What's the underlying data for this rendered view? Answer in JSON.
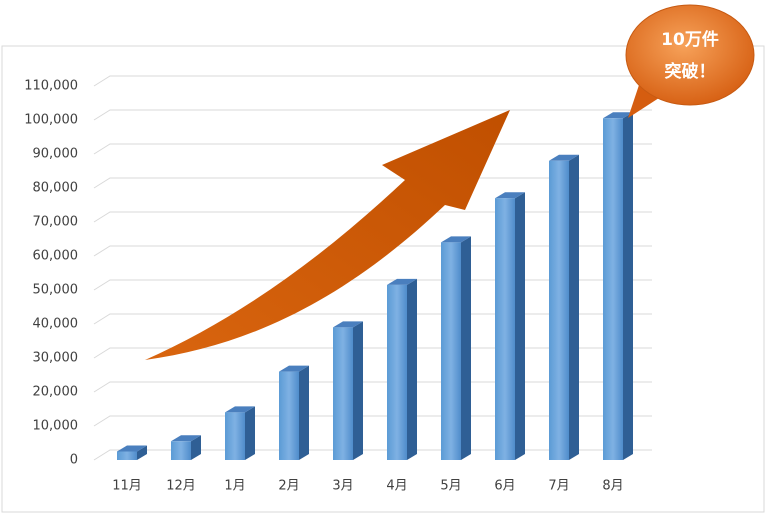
{
  "chart_data": {
    "type": "bar",
    "categories": [
      "11月",
      "12月",
      "1月",
      "2月",
      "3月",
      "4月",
      "5月",
      "6月",
      "7月",
      "8月"
    ],
    "values": [
      2500,
      5500,
      14000,
      26000,
      39000,
      51500,
      64000,
      77000,
      88000,
      100500
    ],
    "color": "#5b9bd5",
    "ylim": [
      0,
      110000
    ],
    "yticks": [
      0,
      {
        "value": 10000,
        "label": "10,000"
      },
      {
        "value": 20000,
        "label": "20,000"
      },
      {
        "value": 30000,
        "label": "30,000"
      },
      {
        "value": 40000,
        "label": "40,000"
      },
      {
        "value": 50000,
        "label": "50,000"
      },
      {
        "value": 60000,
        "label": "60,000"
      },
      {
        "value": 70000,
        "label": "70,000"
      },
      {
        "value": 80000,
        "label": "80,000"
      },
      {
        "value": 90000,
        "label": "90,000"
      },
      {
        "value": 100000,
        "label": "100,000"
      },
      {
        "value": 110000,
        "label": "110,000"
      }
    ],
    "grid": true,
    "annotation": [
      "10万件",
      "突破！"
    ]
  }
}
